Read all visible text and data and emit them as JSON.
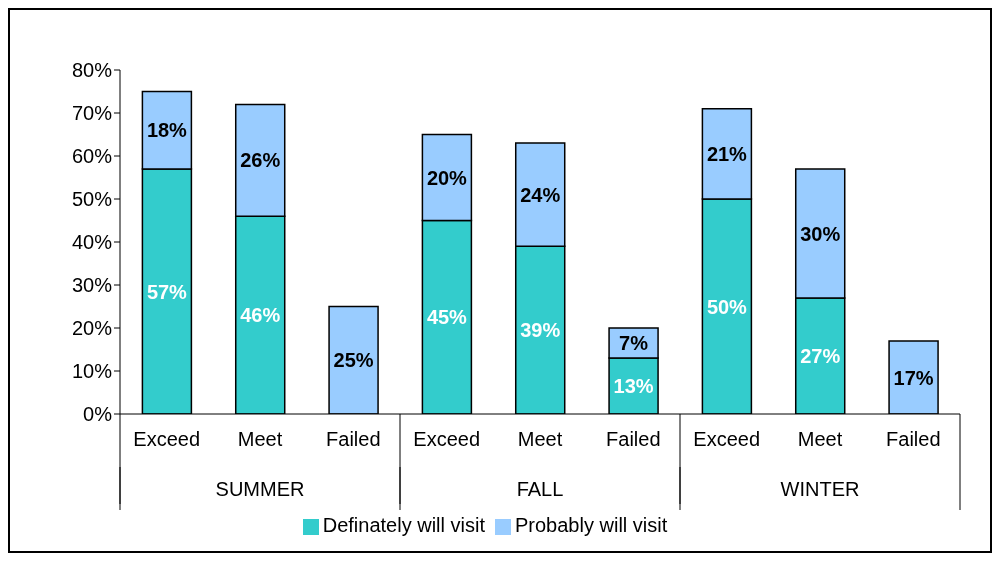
{
  "chart_data": {
    "type": "bar",
    "stacked": true,
    "categories": [
      "Exceed",
      "Meet",
      "Failed",
      "Exceed",
      "Meet",
      "Failed",
      "Exceed",
      "Meet",
      "Failed"
    ],
    "annotations": [
      "SUMMER",
      "FALL",
      "WINTER"
    ],
    "series": [
      {
        "name": "Definately will visit",
        "color": "#33cccc",
        "values": [
          57,
          46,
          0,
          45,
          39,
          13,
          50,
          27,
          0
        ],
        "value_labels": [
          "57%",
          "46%",
          null,
          "45%",
          "39%",
          "13%",
          "50%",
          "27%",
          null
        ]
      },
      {
        "name": "Probably will visit",
        "color": "#99ccff",
        "values": [
          18,
          26,
          25,
          20,
          24,
          7,
          21,
          30,
          17
        ],
        "value_labels": [
          "18%",
          "26%",
          "25%",
          "20%",
          "24%",
          "7%",
          "21%",
          "30%",
          "17%"
        ]
      }
    ],
    "ylim": [
      0,
      80
    ],
    "yticks": [
      {
        "value": 0,
        "label": "0%"
      },
      {
        "value": 10,
        "label": "10%"
      },
      {
        "value": 20,
        "label": "20%"
      },
      {
        "value": 30,
        "label": "30%"
      },
      {
        "value": 40,
        "label": "40%"
      },
      {
        "value": 50,
        "label": "50%"
      },
      {
        "value": 60,
        "label": "60%"
      },
      {
        "value": 70,
        "label": "70%"
      },
      {
        "value": 80,
        "label": "80%"
      }
    ],
    "grid": false,
    "legend": "bottom"
  }
}
